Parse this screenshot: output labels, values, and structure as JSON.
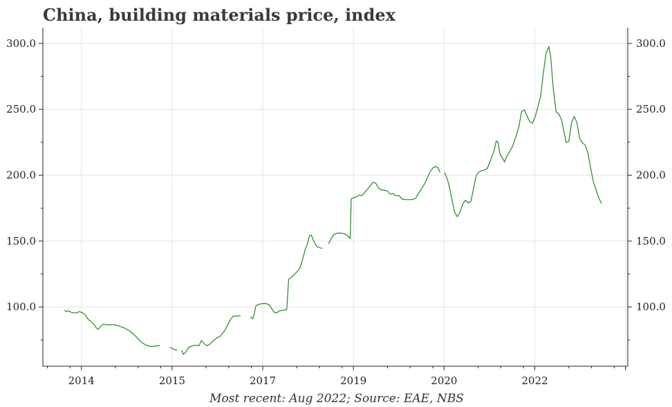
{
  "chart_data": {
    "type": "line",
    "title": "China, building materials price, index",
    "caption": "Most recent: Aug 2022; Source: EAE, NBS",
    "xlabel": "",
    "ylabel": "",
    "x_ticks": [
      "2014",
      "2015",
      "2017",
      "2019",
      "2020",
      "2022"
    ],
    "y_ticks": [
      "100.0",
      "150.0",
      "200.0",
      "250.0",
      "300.0"
    ],
    "ylim": [
      55,
      312
    ],
    "grid": true,
    "color": "#1d8a1d",
    "series": [
      {
        "segments": [
          [
            [
              2013.47,
              97.5
            ],
            [
              2013.52,
              96.5
            ],
            [
              2013.56,
              97.0
            ],
            [
              2013.62,
              96.0
            ],
            [
              2013.68,
              95.5
            ],
            [
              2013.75,
              95.5
            ],
            [
              2013.8,
              96.5
            ],
            [
              2013.88,
              95.5
            ],
            [
              2013.95,
              93.5
            ],
            [
              2014.0,
              90.5
            ],
            [
              2014.06,
              89.0
            ],
            [
              2014.12,
              87.0
            ],
            [
              2014.18,
              84.0
            ],
            [
              2014.22,
              83.0
            ],
            [
              2014.28,
              85.5
            ],
            [
              2014.34,
              87.0
            ],
            [
              2014.4,
              86.5
            ],
            [
              2014.48,
              86.5
            ],
            [
              2014.56,
              86.5
            ],
            [
              2014.64,
              86.0
            ],
            [
              2014.72,
              85.0
            ],
            [
              2014.8,
              84.0
            ],
            [
              2014.88,
              82.5
            ],
            [
              2014.96,
              80.5
            ],
            [
              2015.04,
              78.0
            ],
            [
              2015.12,
              75.0
            ],
            [
              2015.2,
              72.5
            ],
            [
              2015.28,
              71.0
            ],
            [
              2015.36,
              70.0
            ],
            [
              2015.44,
              70.0
            ],
            [
              2015.52,
              70.5
            ],
            [
              2015.58,
              70.5
            ]
          ],
          [
            [
              2015.8,
              69.5
            ],
            [
              2015.88,
              68.0
            ],
            [
              2015.96,
              67.0
            ]
          ],
          [
            [
              2016.06,
              67.0
            ],
            [
              2016.1,
              64.0
            ],
            [
              2016.16,
              66.0
            ],
            [
              2016.22,
              69.5
            ],
            [
              2016.3,
              70.5
            ],
            [
              2016.38,
              71.0
            ],
            [
              2016.44,
              70.5
            ],
            [
              2016.5,
              74.5
            ],
            [
              2016.56,
              72.0
            ],
            [
              2016.62,
              70.5
            ],
            [
              2016.68,
              71.5
            ],
            [
              2016.76,
              74.5
            ],
            [
              2016.84,
              76.5
            ],
            [
              2016.92,
              78.0
            ],
            [
              2017.0,
              81.5
            ],
            [
              2017.08,
              86.5
            ],
            [
              2017.14,
              90.5
            ],
            [
              2017.2,
              93.0
            ],
            [
              2017.28,
              93.0
            ],
            [
              2017.36,
              93.5
            ]
          ],
          [
            [
              2017.58,
              92.5
            ],
            [
              2017.63,
              91.0
            ],
            [
              2017.66,
              94.5
            ],
            [
              2017.7,
              101.0
            ],
            [
              2017.76,
              102.0
            ],
            [
              2017.84,
              102.5
            ],
            [
              2017.92,
              102.5
            ],
            [
              2018.0,
              101.5
            ],
            [
              2018.06,
              98.0
            ],
            [
              2018.1,
              96.0
            ],
            [
              2018.16,
              95.5
            ],
            [
              2018.22,
              97.0
            ],
            [
              2018.3,
              97.5
            ],
            [
              2018.38,
              98.0
            ],
            [
              2018.42,
              121.0
            ],
            [
              2018.48,
              122.5
            ],
            [
              2018.54,
              124.5
            ],
            [
              2018.6,
              126.5
            ],
            [
              2018.66,
              129.0
            ],
            [
              2018.72,
              135.0
            ],
            [
              2018.78,
              143.0
            ],
            [
              2018.84,
              148.5
            ],
            [
              2018.88,
              154.0
            ],
            [
              2018.92,
              154.5
            ],
            [
              2018.98,
              149.5
            ],
            [
              2019.04,
              146.0
            ],
            [
              2019.1,
              145.0
            ],
            [
              2019.16,
              144.5
            ]
          ],
          [
            [
              2019.3,
              148.0
            ],
            [
              2019.36,
              152.0
            ],
            [
              2019.42,
              155.0
            ],
            [
              2019.5,
              156.0
            ],
            [
              2019.58,
              156.0
            ],
            [
              2019.66,
              155.5
            ],
            [
              2019.72,
              154.0
            ],
            [
              2019.78,
              152.0
            ],
            [
              2019.8,
              182.0
            ],
            [
              2019.86,
              183.0
            ],
            [
              2019.92,
              183.5
            ],
            [
              2019.98,
              185.0
            ],
            [
              2020.04,
              184.5
            ],
            [
              2020.1,
              187.0
            ],
            [
              2020.16,
              189.5
            ],
            [
              2020.22,
              192.0
            ],
            [
              2020.28,
              194.5
            ],
            [
              2020.34,
              194.0
            ],
            [
              2020.4,
              190.5
            ],
            [
              2020.46,
              189.0
            ],
            [
              2020.54,
              188.5
            ],
            [
              2020.6,
              188.0
            ],
            [
              2020.66,
              185.5
            ],
            [
              2020.72,
              186.0
            ],
            [
              2020.78,
              184.5
            ],
            [
              2020.86,
              184.5
            ],
            [
              2020.92,
              182.0
            ],
            [
              2021.0,
              181.5
            ],
            [
              2021.08,
              181.5
            ],
            [
              2021.16,
              181.5
            ],
            [
              2021.22,
              182.5
            ],
            [
              2021.28,
              186.0
            ],
            [
              2021.36,
              190.0
            ],
            [
              2021.42,
              193.5
            ],
            [
              2021.48,
              198.0
            ],
            [
              2021.54,
              202.5
            ],
            [
              2021.6,
              205.5
            ],
            [
              2021.66,
              206.5
            ],
            [
              2021.72,
              205.5
            ],
            [
              2021.76,
              202.0
            ]
          ],
          [
            [
              2021.86,
              202.0
            ],
            [
              2021.92,
              197.0
            ],
            [
              2021.96,
              192.0
            ],
            [
              2022.02,
              182.0
            ],
            [
              2022.08,
              172.0
            ],
            [
              2022.14,
              168.5
            ],
            [
              2022.2,
              172.0
            ],
            [
              2022.26,
              178.0
            ],
            [
              2022.32,
              181.0
            ],
            [
              2022.38,
              179.0
            ],
            [
              2022.44,
              180.0
            ],
            [
              2022.5,
              190.0
            ],
            [
              2022.56,
              200.0
            ],
            [
              2022.62,
              202.5
            ],
            [
              2022.68,
              203.5
            ],
            [
              2022.74,
              204.0
            ],
            [
              2022.8,
              205.0
            ],
            [
              2022.86,
              210.0
            ],
            [
              2022.9,
              214.0
            ],
            [
              2022.95,
              218.0
            ],
            [
              2023.0,
              226.0
            ],
            [
              2023.04,
              225.0
            ],
            [
              2023.08,
              216.0
            ],
            [
              2023.14,
              213.0
            ],
            [
              2023.18,
              210.0
            ],
            [
              2023.22,
              213.5
            ],
            [
              2023.28,
              217.0
            ],
            [
              2023.36,
              222.0
            ],
            [
              2023.44,
              230.0
            ],
            [
              2023.5,
              237.0
            ],
            [
              2023.56,
              248.5
            ],
            [
              2023.62,
              249.5
            ],
            [
              2023.68,
              245.0
            ],
            [
              2023.74,
              240.5
            ],
            [
              2023.8,
              239.5
            ],
            [
              2023.86,
              244.5
            ],
            [
              2023.92,
              252.0
            ],
            [
              2023.98,
              260.0
            ],
            [
              2024.04,
              278.0
            ],
            [
              2024.1,
              293.0
            ],
            [
              2024.16,
              297.5
            ],
            [
              2024.2,
              290.0
            ],
            [
              2024.26,
              265.0
            ],
            [
              2024.32,
              248.0
            ],
            [
              2024.38,
              246.5
            ],
            [
              2024.44,
              242.0
            ],
            [
              2024.48,
              235.0
            ],
            [
              2024.54,
              225.0
            ],
            [
              2024.6,
              225.5
            ],
            [
              2024.66,
              240.0
            ],
            [
              2024.72,
              244.5
            ],
            [
              2024.78,
              240.0
            ],
            [
              2024.84,
              228.0
            ],
            [
              2024.9,
              224.5
            ],
            [
              2024.96,
              223.0
            ],
            [
              2025.02,
              217.0
            ],
            [
              2025.08,
              206.0
            ],
            [
              2025.14,
              195.0
            ],
            [
              2025.2,
              189.0
            ],
            [
              2025.26,
              183.0
            ],
            [
              2025.32,
              178.5
            ]
          ]
        ]
      }
    ]
  }
}
